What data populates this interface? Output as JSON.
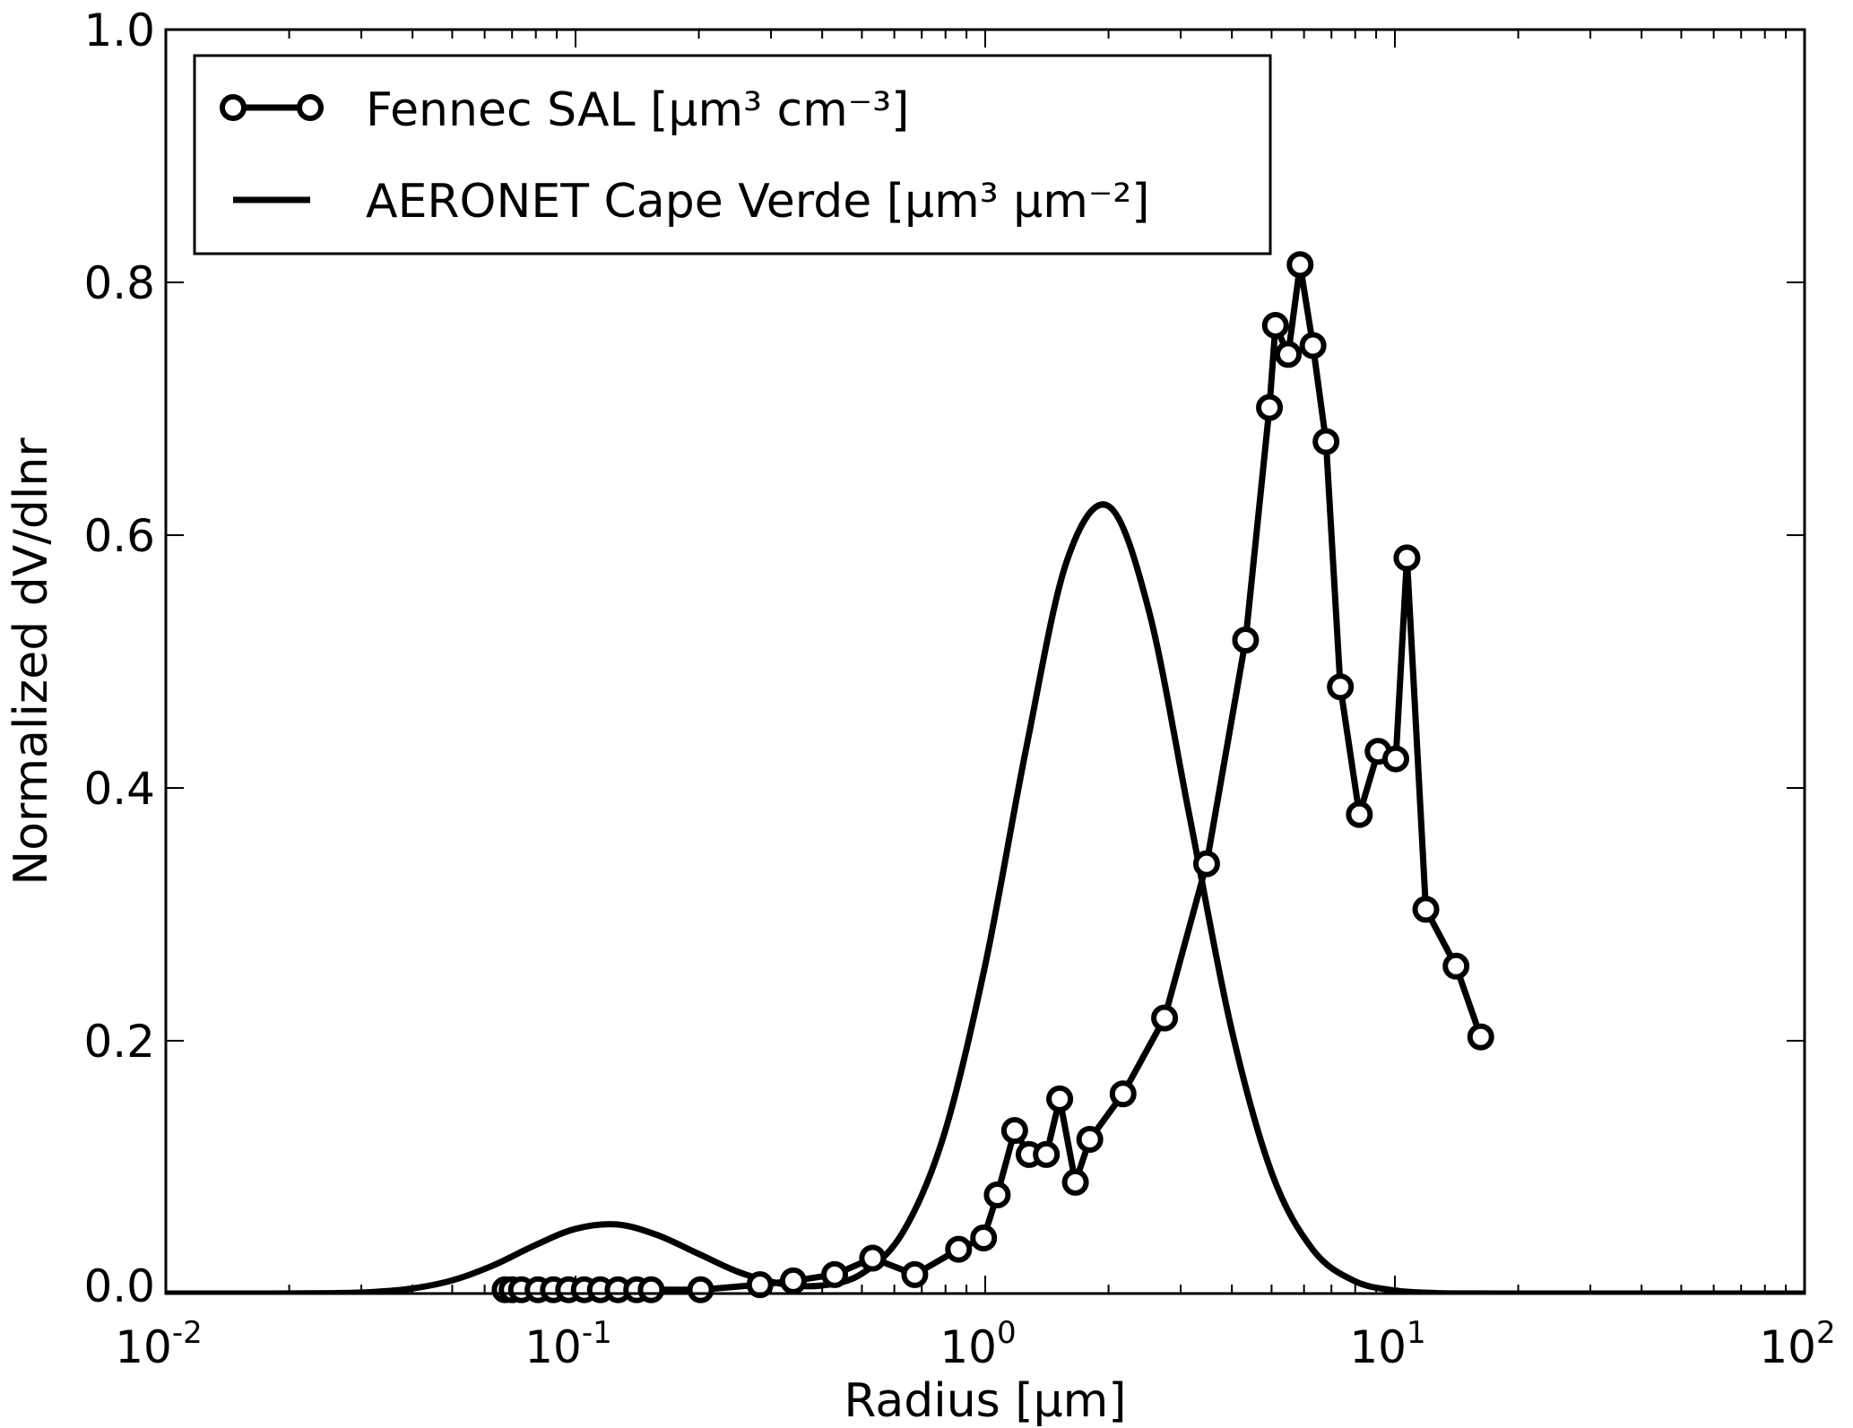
{
  "chart_data": {
    "type": "line",
    "xlabel": "Radius [μm]",
    "ylabel": "Normalized dV/dlnr",
    "xscale": "log",
    "xlim": [
      0.01,
      100
    ],
    "ylim": [
      0.0,
      1.0
    ],
    "grid": false,
    "legend_placement": "top-left",
    "x_ticks": [
      {
        "base": "10",
        "exp": "-2"
      },
      {
        "base": "10",
        "exp": "-1"
      },
      {
        "base": "10",
        "exp": "0"
      },
      {
        "base": "10",
        "exp": "1"
      },
      {
        "base": "10",
        "exp": "2"
      }
    ],
    "y_ticks": [
      "0.0",
      "0.2",
      "0.4",
      "0.6",
      "0.8",
      "1.0"
    ],
    "series": [
      {
        "name": "Fennec SAL [μm³ cm⁻³]",
        "style": "line-with-open-circles",
        "color": "#000000",
        "x": [
          0.0673,
          0.07,
          0.0738,
          0.081,
          0.0883,
          0.0962,
          0.105,
          0.115,
          0.127,
          0.141,
          0.153,
          0.202,
          0.282,
          0.34,
          0.429,
          0.531,
          0.673,
          0.861,
          0.991,
          1.07,
          1.18,
          1.28,
          1.41,
          1.52,
          1.66,
          1.8,
          2.17,
          2.74,
          3.47,
          4.32,
          4.94,
          5.11,
          5.49,
          5.87,
          6.31,
          6.79,
          7.36,
          8.19,
          9.1,
          10.05,
          10.7,
          11.9,
          14.1,
          16.2
        ],
        "y": [
          0.003,
          0.003,
          0.003,
          0.003,
          0.003,
          0.003,
          0.003,
          0.003,
          0.003,
          0.003,
          0.003,
          0.003,
          0.007,
          0.01,
          0.015,
          0.028,
          0.015,
          0.035,
          0.044,
          0.078,
          0.129,
          0.11,
          0.11,
          0.154,
          0.088,
          0.122,
          0.158,
          0.218,
          0.34,
          0.517,
          0.701,
          0.766,
          0.743,
          0.814,
          0.75,
          0.674,
          0.48,
          0.379,
          0.429,
          0.423,
          0.582,
          0.304,
          0.259,
          0.203
        ]
      },
      {
        "name": "AERONET Cape Verde [μm³ μm⁻²]",
        "style": "line",
        "color": "#000000",
        "x": [
          0.01,
          0.0126,
          0.0158,
          0.02,
          0.0251,
          0.0316,
          0.0398,
          0.0501,
          0.0631,
          0.0794,
          0.1,
          0.126,
          0.158,
          0.2,
          0.251,
          0.316,
          0.398,
          0.501,
          0.631,
          0.794,
          1.0,
          1.26,
          1.58,
          2.0,
          2.51,
          3.16,
          3.98,
          5.01,
          6.31,
          7.94,
          10.0,
          12.6,
          15.8,
          20.0,
          25.1,
          31.6,
          39.8,
          50.1,
          63.1,
          79.4,
          100
        ],
        "y": [
          0.0,
          0.0,
          0.0,
          0.0001,
          0.0003,
          0.0011,
          0.0039,
          0.0105,
          0.0224,
          0.038,
          0.0512,
          0.0547,
          0.0464,
          0.0313,
          0.0168,
          0.0079,
          0.0063,
          0.0159,
          0.049,
          0.126,
          0.26,
          0.432,
          0.579,
          0.623,
          0.54,
          0.376,
          0.211,
          0.095,
          0.0346,
          0.0101,
          0.0024,
          0.0004,
          0.0001,
          0.0,
          0.0,
          0.0,
          0.0,
          0.0,
          0.0,
          0.0,
          0.0
        ]
      }
    ]
  }
}
